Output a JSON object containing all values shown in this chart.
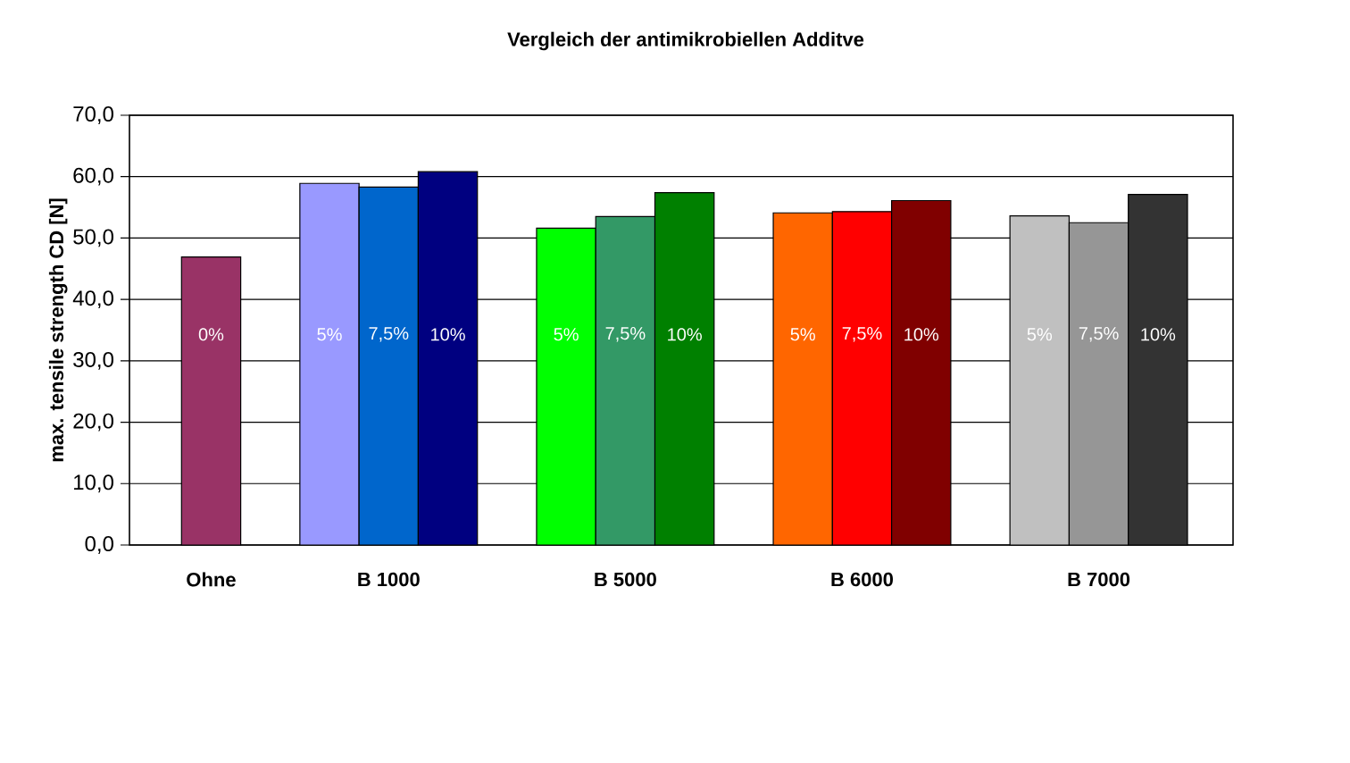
{
  "chart_data": {
    "type": "bar",
    "title": "Vergleich der antimikrobiellen Additve",
    "ylabel": "max. tensile strength CD [N]",
    "categories": [
      "Ohne",
      null,
      null,
      "B 1000",
      null,
      null,
      null,
      "B 5000",
      null,
      null,
      null,
      "B 6000",
      null,
      null,
      null,
      "B 7000",
      null
    ],
    "values": [
      46.9,
      null,
      58.9,
      58.3,
      60.8,
      null,
      51.6,
      53.5,
      57.4,
      null,
      54.1,
      54.3,
      56.1,
      null,
      53.6,
      52.5,
      57.1
    ],
    "colors": [
      "#993366",
      "#ffffff",
      "#9999ff",
      "#0066cc",
      "#000080",
      "#ffffff",
      "#00ff00",
      "#339966",
      "#008000",
      "#ffffff",
      "#ff6600",
      "#ff0000",
      "#800000",
      "#ffffff",
      "#c0c0c0",
      "#969696",
      "#333333"
    ],
    "annotations": [
      "0%",
      "5%",
      "7,5%",
      "10%",
      "5%",
      "7,5%",
      "10%",
      "5%",
      "7,5%",
      "10%",
      "5%",
      "7,5%",
      "10%"
    ],
    "ylim": [
      0,
      70
    ],
    "yticks": [
      {
        "value": 0,
        "label": "0,0"
      },
      {
        "value": 10,
        "label": "10,0"
      },
      {
        "value": 20,
        "label": "20,0"
      },
      {
        "value": 30,
        "label": "30,0"
      },
      {
        "value": 40,
        "label": "40,0"
      },
      {
        "value": 50,
        "label": "50,0"
      },
      {
        "value": 60,
        "label": "60,0"
      },
      {
        "value": 70,
        "label": "70,0"
      }
    ],
    "grid": "y"
  }
}
